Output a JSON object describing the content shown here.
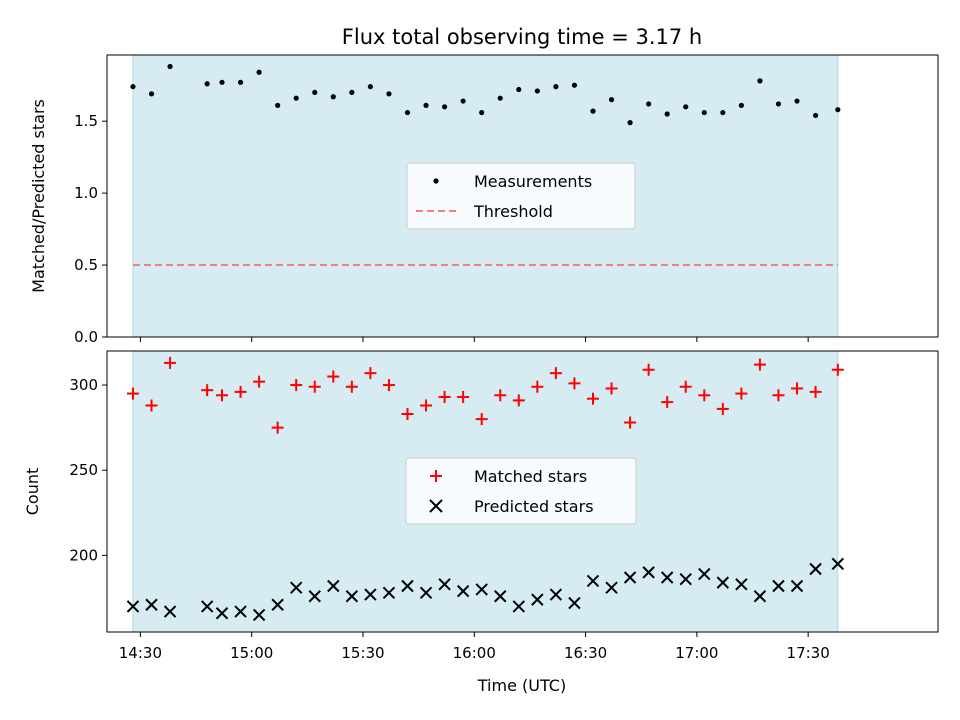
{
  "chart_data": [
    {
      "type": "scatter",
      "title": "Flux total observing time = 3.17 h",
      "xlabel": "",
      "ylabel": "Matched/Predicted stars",
      "xlim": [
        "14:21",
        "18:05"
      ],
      "ylim": [
        0,
        1.96
      ],
      "yticks": [
        0.0,
        0.5,
        1.0,
        1.5
      ],
      "ytick_labels": [
        "0.0",
        "0.5",
        "1.0",
        "1.5"
      ],
      "observing_window": [
        "14:28",
        "17:38"
      ],
      "legend_placement": "center",
      "series": [
        {
          "name": "Measurements",
          "marker": "dot",
          "color": "#000000",
          "x": [
            "14:28",
            "14:33",
            "14:38",
            "14:48",
            "14:52",
            "14:57",
            "15:02",
            "15:07",
            "15:12",
            "15:17",
            "15:22",
            "15:27",
            "15:32",
            "15:37",
            "15:42",
            "15:47",
            "15:52",
            "15:57",
            "16:02",
            "16:07",
            "16:12",
            "16:17",
            "16:22",
            "16:27",
            "16:32",
            "16:37",
            "16:42",
            "16:47",
            "16:52",
            "16:57",
            "17:02",
            "17:07",
            "17:12",
            "17:17",
            "17:22",
            "17:27",
            "17:32",
            "17:38"
          ],
          "y": [
            1.74,
            1.69,
            1.88,
            1.76,
            1.77,
            1.77,
            1.84,
            1.61,
            1.66,
            1.7,
            1.67,
            1.7,
            1.74,
            1.69,
            1.56,
            1.61,
            1.6,
            1.64,
            1.56,
            1.66,
            1.72,
            1.71,
            1.74,
            1.75,
            1.57,
            1.65,
            1.49,
            1.62,
            1.55,
            1.6,
            1.56,
            1.56,
            1.61,
            1.78,
            1.62,
            1.64,
            1.54,
            1.58
          ]
        },
        {
          "name": "Threshold",
          "marker": "dashed-line",
          "color": "#f08080",
          "x": [
            "14:28",
            "17:38"
          ],
          "y": [
            0.5,
            0.5
          ]
        }
      ]
    },
    {
      "type": "scatter",
      "xlabel": "Time (UTC)",
      "ylabel": "Count",
      "xlim": [
        "14:21",
        "18:05"
      ],
      "ylim": [
        155,
        320
      ],
      "xticks": [
        "14:30",
        "15:00",
        "15:30",
        "16:00",
        "16:30",
        "17:00",
        "17:30"
      ],
      "yticks": [
        200,
        250,
        300
      ],
      "observing_window": [
        "14:28",
        "17:38"
      ],
      "legend_placement": "center",
      "series": [
        {
          "name": "Matched stars",
          "marker": "plus",
          "color": "#ff0000",
          "x": [
            "14:28",
            "14:33",
            "14:38",
            "14:48",
            "14:52",
            "14:57",
            "15:02",
            "15:07",
            "15:12",
            "15:17",
            "15:22",
            "15:27",
            "15:32",
            "15:37",
            "15:42",
            "15:47",
            "15:52",
            "15:57",
            "16:02",
            "16:07",
            "16:12",
            "16:17",
            "16:22",
            "16:27",
            "16:32",
            "16:37",
            "16:42",
            "16:47",
            "16:52",
            "16:57",
            "17:02",
            "17:07",
            "17:12",
            "17:17",
            "17:22",
            "17:27",
            "17:32",
            "17:38"
          ],
          "y": [
            295,
            288,
            313,
            297,
            294,
            296,
            302,
            275,
            300,
            299,
            305,
            299,
            307,
            300,
            283,
            288,
            293,
            293,
            280,
            294,
            291,
            299,
            307,
            301,
            292,
            298,
            278,
            309,
            290,
            299,
            294,
            286,
            295,
            312,
            294,
            298,
            296,
            309
          ]
        },
        {
          "name": "Predicted stars",
          "marker": "x",
          "color": "#000000",
          "x": [
            "14:28",
            "14:33",
            "14:38",
            "14:48",
            "14:52",
            "14:57",
            "15:02",
            "15:07",
            "15:12",
            "15:17",
            "15:22",
            "15:27",
            "15:32",
            "15:37",
            "15:42",
            "15:47",
            "15:52",
            "15:57",
            "16:02",
            "16:07",
            "16:12",
            "16:17",
            "16:22",
            "16:27",
            "16:32",
            "16:37",
            "16:42",
            "16:47",
            "16:52",
            "16:57",
            "17:02",
            "17:07",
            "17:12",
            "17:17",
            "17:22",
            "17:27",
            "17:32",
            "17:38"
          ],
          "y": [
            170,
            171,
            167,
            170,
            166,
            167,
            165,
            171,
            181,
            176,
            182,
            176,
            177,
            178,
            182,
            178,
            183,
            179,
            180,
            176,
            170,
            174,
            177,
            172,
            185,
            181,
            187,
            190,
            187,
            186,
            189,
            184,
            183,
            176,
            182,
            182,
            192,
            195
          ]
        }
      ]
    }
  ],
  "colors": {
    "observing_band": "#add8e6",
    "axis": "#000000"
  }
}
